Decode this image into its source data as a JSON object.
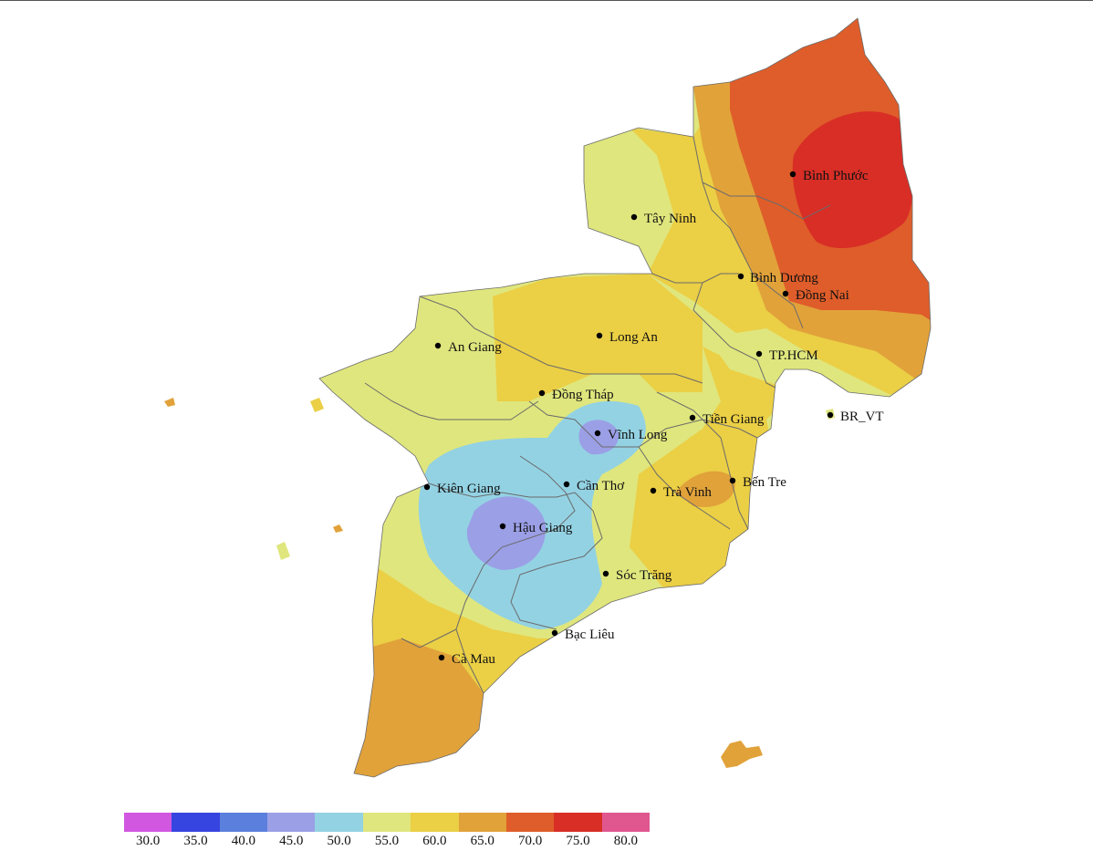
{
  "map": {
    "zone_colors": {
      "c55": "#dfe67d",
      "c60": "#ebcf45",
      "c65": "#e1a23a",
      "c70": "#df5d2a",
      "c75": "#d82e26",
      "c50": "#93d2e3",
      "c45": "#9b9fe6",
      "border": "#6b6b6b"
    },
    "cities": [
      {
        "name": "Bình Phước"
      },
      {
        "name": "Tây Ninh"
      },
      {
        "name": "Bình Dương"
      },
      {
        "name": "Đồng Nai"
      },
      {
        "name": "Long An"
      },
      {
        "name": "An Giang"
      },
      {
        "name": "TP.HCM"
      },
      {
        "name": "Đồng Tháp"
      },
      {
        "name": "Tiền Giang"
      },
      {
        "name": "BR_VT"
      },
      {
        "name": "Vĩnh Long"
      },
      {
        "name": "Bến Tre"
      },
      {
        "name": "Kiên Giang"
      },
      {
        "name": "Cần Thơ"
      },
      {
        "name": "Trà Vinh"
      },
      {
        "name": "Hậu Giang"
      },
      {
        "name": "Sóc Trăng"
      },
      {
        "name": "Bạc Liêu"
      },
      {
        "name": "Cà Mau"
      }
    ]
  },
  "legend": {
    "colors": [
      "#d157e0",
      "#3745e0",
      "#5a7fdc",
      "#9b9fe6",
      "#93d2e3",
      "#dfe67d",
      "#ebcf45",
      "#e1a23a",
      "#df5d2a",
      "#d82e26",
      "#e0578f"
    ],
    "labels": [
      "30.0",
      "35.0",
      "40.0",
      "45.0",
      "50.0",
      "55.0",
      "60.0",
      "65.0",
      "70.0",
      "75.0",
      "80.0"
    ]
  }
}
